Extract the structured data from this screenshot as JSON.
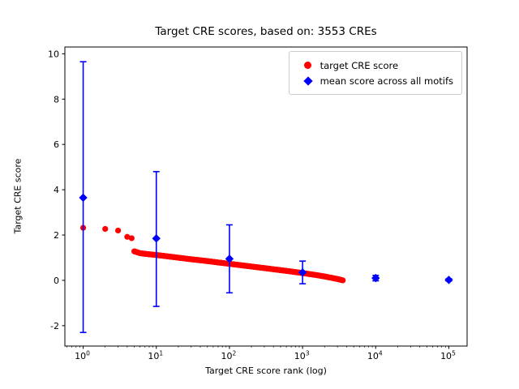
{
  "title": "Target CRE scores, based on: 3553 CREs",
  "legend": {
    "items": [
      {
        "label": "target CRE score",
        "marker": "circle",
        "color": "#ff0000"
      },
      {
        "label": "mean score across all motifs",
        "marker": "diamond",
        "color": "#0000ff"
      }
    ]
  },
  "chart_data": {
    "type": "scatter",
    "title": "Target CRE scores, based on: 3553 CREs",
    "xlabel": "Target CRE score rank (log)",
    "ylabel": "Target CRE score",
    "x_scale": "log",
    "n_cres": 3553,
    "xlim": [
      0.562,
      177828
    ],
    "ylim": [
      -2.9,
      10.3
    ],
    "x_tick_exponents": [
      0,
      1,
      2,
      3,
      4,
      5
    ],
    "y_ticks": [
      -2,
      0,
      2,
      4,
      6,
      8,
      10
    ],
    "grid": false,
    "legend_position": "upper right",
    "series": [
      {
        "name": "target CRE score",
        "type": "scatter",
        "marker": "circle",
        "color": "#ff0000",
        "head_points": [
          [
            1,
            2.32
          ],
          [
            2,
            2.27
          ],
          [
            3,
            2.2
          ],
          [
            4,
            1.92
          ],
          [
            4.6,
            1.86
          ]
        ],
        "band_anchor_points": [
          [
            5,
            1.28
          ],
          [
            6,
            1.2
          ],
          [
            7,
            1.17
          ],
          [
            8,
            1.15
          ],
          [
            10,
            1.12
          ],
          [
            15,
            1.05
          ],
          [
            20,
            1.0
          ],
          [
            30,
            0.93
          ],
          [
            50,
            0.85
          ],
          [
            70,
            0.79
          ],
          [
            100,
            0.73
          ],
          [
            150,
            0.66
          ],
          [
            200,
            0.61
          ],
          [
            300,
            0.54
          ],
          [
            500,
            0.45
          ],
          [
            700,
            0.39
          ],
          [
            1000,
            0.32
          ],
          [
            1500,
            0.24
          ],
          [
            2000,
            0.17
          ],
          [
            2500,
            0.11
          ],
          [
            3000,
            0.06
          ],
          [
            3553,
            0.0
          ]
        ],
        "band_start_rank": 5,
        "band_end_rank": 3553
      },
      {
        "name": "mean score across all motifs",
        "type": "errorbar",
        "marker": "diamond",
        "color": "#0000ff",
        "points": [
          {
            "x": 1,
            "y": 3.65,
            "err_low": 5.95,
            "err_high": 6.0
          },
          {
            "x": 10,
            "y": 1.85,
            "err_low": 3.0,
            "err_high": 2.95
          },
          {
            "x": 100,
            "y": 0.95,
            "err_low": 1.5,
            "err_high": 1.5
          },
          {
            "x": 1000,
            "y": 0.35,
            "err_low": 0.5,
            "err_high": 0.5
          },
          {
            "x": 10000,
            "y": 0.1,
            "err_low": 0.12,
            "err_high": 0.12
          },
          {
            "x": 100000,
            "y": 0.02,
            "err_low": 0.05,
            "err_high": 0.05
          }
        ]
      }
    ]
  }
}
